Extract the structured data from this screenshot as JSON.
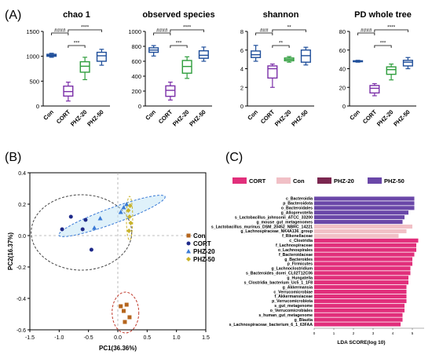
{
  "panel_labels": [
    "(A)",
    "(B)",
    "(C)"
  ],
  "colors": {
    "Con": "#1f4e9a",
    "CORT": "#7b2fa8",
    "PHZ-20": "#2e9d3c",
    "PHZ-50": "#1f4e9a",
    "pca_Con": "#b5651d",
    "pca_CORT": "#1f2a8a",
    "pca_PHZ20": "#3a7ad6",
    "pca_PHZ50": "#c9b32a",
    "lda_CORT": "#e12f7b",
    "lda_Con": "#f1c0c6",
    "lda_PHZ20": "#7b2750",
    "lda_PHZ50": "#6a47a8"
  },
  "chart_data": [
    {
      "type": "box",
      "title": "chao 1",
      "categories": [
        "Con",
        "CORT",
        "PHZ-20",
        "PHZ-50"
      ],
      "ylim": [
        0,
        1500
      ],
      "yticks": [
        "0",
        "500",
        "1000",
        "1500"
      ],
      "boxes": [
        [
          980,
          1000,
          1020,
          1040,
          1060
        ],
        [
          100,
          200,
          290,
          400,
          480
        ],
        [
          530,
          680,
          800,
          890,
          980
        ],
        [
          820,
          900,
          1010,
          1080,
          1140
        ]
      ],
      "sig": [
        {
          "from": 0,
          "to": 1,
          "label": "####"
        },
        {
          "from": 1,
          "to": 2,
          "label": "***"
        },
        {
          "from": 1,
          "to": 3,
          "label": "****"
        }
      ]
    },
    {
      "type": "box",
      "title": "observed species",
      "categories": [
        "Con",
        "CORT",
        "PHZ-20",
        "PHZ-50"
      ],
      "ylim": [
        0,
        1000
      ],
      "yticks": [
        "0",
        "200",
        "400",
        "600",
        "800",
        "1000"
      ],
      "boxes": [
        [
          670,
          720,
          750,
          780,
          810
        ],
        [
          80,
          130,
          210,
          270,
          320
        ],
        [
          370,
          440,
          530,
          610,
          660
        ],
        [
          600,
          640,
          680,
          740,
          790
        ]
      ],
      "sig": [
        {
          "from": 0,
          "to": 1,
          "label": "####"
        },
        {
          "from": 1,
          "to": 2,
          "label": "***"
        },
        {
          "from": 1,
          "to": 3,
          "label": "****"
        }
      ]
    },
    {
      "type": "box",
      "title": "shannon",
      "categories": [
        "Con",
        "CORT",
        "PHZ-20",
        "PHZ-50"
      ],
      "ylim": [
        0,
        8
      ],
      "yticks": [
        "0",
        "2",
        "4",
        "6",
        "8"
      ],
      "boxes": [
        [
          4.8,
          5.2,
          5.5,
          5.9,
          6.5
        ],
        [
          2.0,
          3.0,
          4.0,
          4.3,
          4.5
        ],
        [
          4.7,
          4.85,
          5.0,
          5.15,
          5.3
        ],
        [
          4.4,
          4.7,
          5.4,
          6.0,
          6.3
        ]
      ],
      "sig": [
        {
          "from": 0,
          "to": 1,
          "label": "###"
        },
        {
          "from": 1,
          "to": 2,
          "label": "**"
        },
        {
          "from": 1,
          "to": 3,
          "label": "**"
        }
      ]
    },
    {
      "type": "box",
      "title": "PD whole tree",
      "categories": [
        "Con",
        "CORT",
        "PHZ-20",
        "PHZ-50"
      ],
      "ylim": [
        0,
        80
      ],
      "yticks": [
        "0",
        "20",
        "40",
        "60",
        "80"
      ],
      "boxes": [
        [
          47,
          47.5,
          48,
          48.5,
          49
        ],
        [
          11,
          14,
          19,
          22,
          24
        ],
        [
          28,
          34,
          39,
          42,
          45
        ],
        [
          40,
          43,
          47,
          49,
          52
        ]
      ],
      "sig": [
        {
          "from": 0,
          "to": 1,
          "label": "####"
        },
        {
          "from": 1,
          "to": 2,
          "label": "***"
        },
        {
          "from": 1,
          "to": 3,
          "label": "****"
        }
      ]
    },
    {
      "type": "scatter",
      "xlabel": "PC1(36.36%)",
      "ylabel": "PC2(16.37%)",
      "xlim": [
        -1.5,
        1.5
      ],
      "ylim": [
        -0.6,
        0.4
      ],
      "xticks": [
        "-1.5",
        "-1.0",
        "-0.5",
        "0.0",
        "0.5",
        "1.0",
        "1.5"
      ],
      "yticks": [
        "-0.6",
        "-0.4",
        "-0.2",
        "0.0",
        "0.2",
        "0.4"
      ],
      "series": [
        {
          "name": "Con",
          "points": [
            [
              0.05,
              -0.45
            ],
            [
              0.15,
              -0.44
            ],
            [
              0.1,
              -0.48
            ],
            [
              0.2,
              -0.52
            ],
            [
              0.12,
              -0.55
            ]
          ]
        },
        {
          "name": "CORT",
          "points": [
            [
              -0.95,
              0.04
            ],
            [
              -0.8,
              0.12
            ],
            [
              -0.55,
              0.1
            ],
            [
              -0.45,
              -0.09
            ],
            [
              -0.6,
              0.04
            ]
          ]
        },
        {
          "name": "PHZ-20",
          "points": [
            [
              -0.3,
              0.11
            ],
            [
              -0.4,
              0.05
            ],
            [
              0.05,
              0.15
            ],
            [
              0.1,
              0.18
            ],
            [
              0.15,
              0.2
            ]
          ]
        },
        {
          "name": "PHZ-50",
          "points": [
            [
              0.18,
              0.16
            ],
            [
              0.2,
              0.12
            ],
            [
              0.22,
              0.08
            ],
            [
              0.19,
              0.03
            ],
            [
              0.21,
              0.19
            ]
          ]
        }
      ]
    },
    {
      "type": "bar",
      "xlabel": "LDA SCORE(log 10)",
      "legend": [
        "CORT",
        "Con",
        "PHZ-20",
        "PHZ-50"
      ],
      "xticks": [
        "0",
        "1",
        "2",
        "3",
        "4",
        "5"
      ],
      "xlim": [
        0,
        5.6
      ],
      "bars": [
        {
          "label": "c_Bacteroidia",
          "group": "PHZ-50",
          "value": 5.1
        },
        {
          "label": "p_Bacteroidota",
          "group": "PHZ-50",
          "value": 5.1
        },
        {
          "label": "o_Bacteroidales",
          "group": "PHZ-50",
          "value": 5.1
        },
        {
          "label": "g_Alloprevotella",
          "group": "PHZ-50",
          "value": 4.8
        },
        {
          "label": "s_Lactobacillus_johnsonii_ATCC_33200",
          "group": "PHZ-50",
          "value": 4.6
        },
        {
          "label": "g_mouse_gut_metagenomes",
          "group": "PHZ-50",
          "value": 4.5
        },
        {
          "label": "s_Lactobacillus_murinus_DSM_20452_NBRC_14221",
          "group": "Con",
          "value": 5.0
        },
        {
          "label": "g_Lachnospiraceae_NK4A136_group",
          "group": "Con",
          "value": 4.7
        },
        {
          "label": "f_Rikenellaceae",
          "group": "Con",
          "value": 4.3
        },
        {
          "label": "c_Clostridia",
          "group": "CORT",
          "value": 5.3
        },
        {
          "label": "f_Lachnospiraceae",
          "group": "CORT",
          "value": 5.2
        },
        {
          "label": "o_Lachnospirales",
          "group": "CORT",
          "value": 5.2
        },
        {
          "label": "f_Bacteroidaceae",
          "group": "CORT",
          "value": 5.1
        },
        {
          "label": "g_Bacteroides",
          "group": "CORT",
          "value": 5.0
        },
        {
          "label": "p_Firmicutes",
          "group": "CORT",
          "value": 5.0
        },
        {
          "label": "g_Lachnoclostridium",
          "group": "CORT",
          "value": 4.9
        },
        {
          "label": "s_Bacteroides_dorei_CL02T12C06",
          "group": "CORT",
          "value": 4.9
        },
        {
          "label": "g_Hungatella",
          "group": "CORT",
          "value": 4.8
        },
        {
          "label": "s_Clostridia_bacterium_Uc5_1_1F8",
          "group": "CORT",
          "value": 4.8
        },
        {
          "label": "g_Akkermansia",
          "group": "CORT",
          "value": 4.7
        },
        {
          "label": "c_Verrucomicrobiae",
          "group": "CORT",
          "value": 4.7
        },
        {
          "label": "f_Akkermansiaceae",
          "group": "CORT",
          "value": 4.7
        },
        {
          "label": "p_Verrucomicrobiota",
          "group": "CORT",
          "value": 4.7
        },
        {
          "label": "s_gut_metagenome",
          "group": "CORT",
          "value": 4.6
        },
        {
          "label": "o_Verrucomicrobiales",
          "group": "CORT",
          "value": 4.6
        },
        {
          "label": "s_human_gut_metagenome",
          "group": "CORT",
          "value": 4.5
        },
        {
          "label": "g_Blautia",
          "group": "CORT",
          "value": 4.5
        },
        {
          "label": "s_Lachnospiraceae_bacterium_6_1_63FAA",
          "group": "CORT",
          "value": 4.4
        }
      ]
    }
  ]
}
